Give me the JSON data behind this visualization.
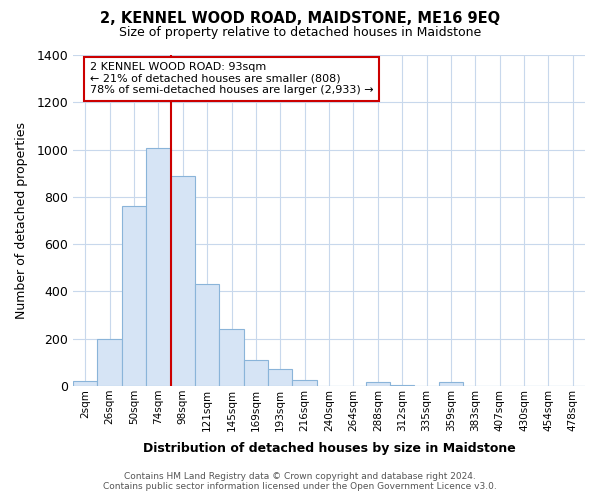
{
  "title": "2, KENNEL WOOD ROAD, MAIDSTONE, ME16 9EQ",
  "subtitle": "Size of property relative to detached houses in Maidstone",
  "xlabel": "Distribution of detached houses by size in Maidstone",
  "ylabel": "Number of detached properties",
  "bar_labels": [
    "2sqm",
    "26sqm",
    "50sqm",
    "74sqm",
    "98sqm",
    "121sqm",
    "145sqm",
    "169sqm",
    "193sqm",
    "216sqm",
    "240sqm",
    "264sqm",
    "288sqm",
    "312sqm",
    "335sqm",
    "359sqm",
    "383sqm",
    "407sqm",
    "430sqm",
    "454sqm",
    "478sqm"
  ],
  "bar_values": [
    20,
    200,
    760,
    1005,
    890,
    430,
    240,
    110,
    70,
    25,
    0,
    0,
    15,
    5,
    0,
    15,
    0,
    0,
    0,
    0,
    0
  ],
  "bar_color_fill": "#d6e4f5",
  "bar_color_edge": "#8ab4d9",
  "vline_index": 4,
  "vline_color": "#cc0000",
  "annotation_line1": "2 KENNEL WOOD ROAD: 93sqm",
  "annotation_line2": "← 21% of detached houses are smaller (808)",
  "annotation_line3": "78% of semi-detached houses are larger (2,933) →",
  "annotation_box_color": "#ffffff",
  "annotation_box_edge": "#cc0000",
  "ylim": [
    0,
    1400
  ],
  "yticks": [
    0,
    200,
    400,
    600,
    800,
    1000,
    1200,
    1400
  ],
  "footer_line1": "Contains HM Land Registry data © Crown copyright and database right 2024.",
  "footer_line2": "Contains public sector information licensed under the Open Government Licence v3.0.",
  "bg_color": "#ffffff",
  "grid_color": "#c8d8ec"
}
